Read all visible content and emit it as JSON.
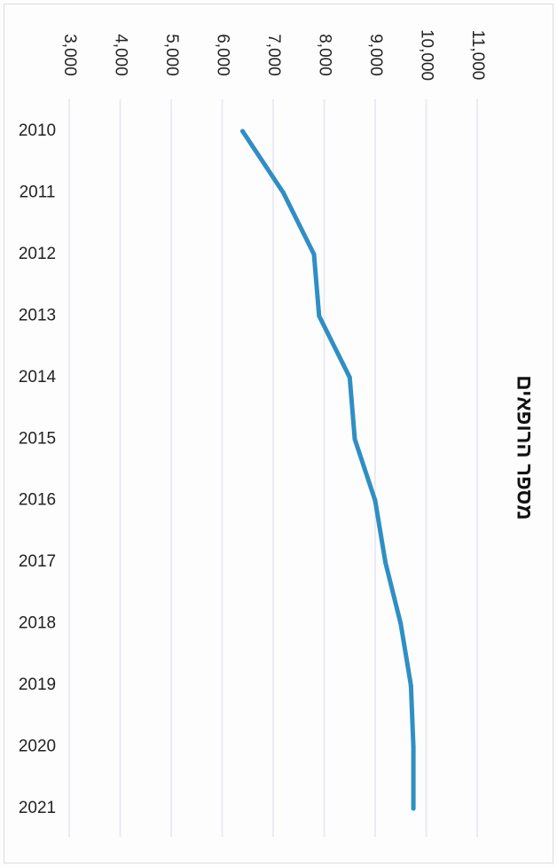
{
  "chart_data": {
    "type": "line",
    "title": "מספר הרופאים",
    "xlabel": "",
    "ylabel": "",
    "x": [
      2010,
      2011,
      2012,
      2013,
      2014,
      2015,
      2016,
      2017,
      2018,
      2019,
      2020,
      2021
    ],
    "x_tick_labels": [
      "2010",
      "2011",
      "2012",
      "2013",
      "2014",
      "2015",
      "2016",
      "2017",
      "2018",
      "2019",
      "2020",
      "2021"
    ],
    "series": [
      {
        "values": [
          6400,
          7200,
          7800,
          7900,
          8500,
          8600,
          9000,
          9200,
          9500,
          9700,
          9750,
          9750
        ]
      }
    ],
    "ylim": [
      3000,
      11000
    ],
    "y_ticks": [
      3000,
      4000,
      5000,
      6000,
      7000,
      8000,
      9000,
      10000,
      11000
    ],
    "y_tick_labels": [
      "3,000",
      "4,000",
      "5,000",
      "6,000",
      "7,000",
      "8,000",
      "9,000",
      "10,000",
      "11,000"
    ],
    "orientation": "rotated 90 degrees clockwise",
    "grid": true,
    "legend": "none",
    "colors": {
      "line": "#2f8fc4",
      "grid": "#e3e6ee",
      "text": "#222222"
    }
  }
}
